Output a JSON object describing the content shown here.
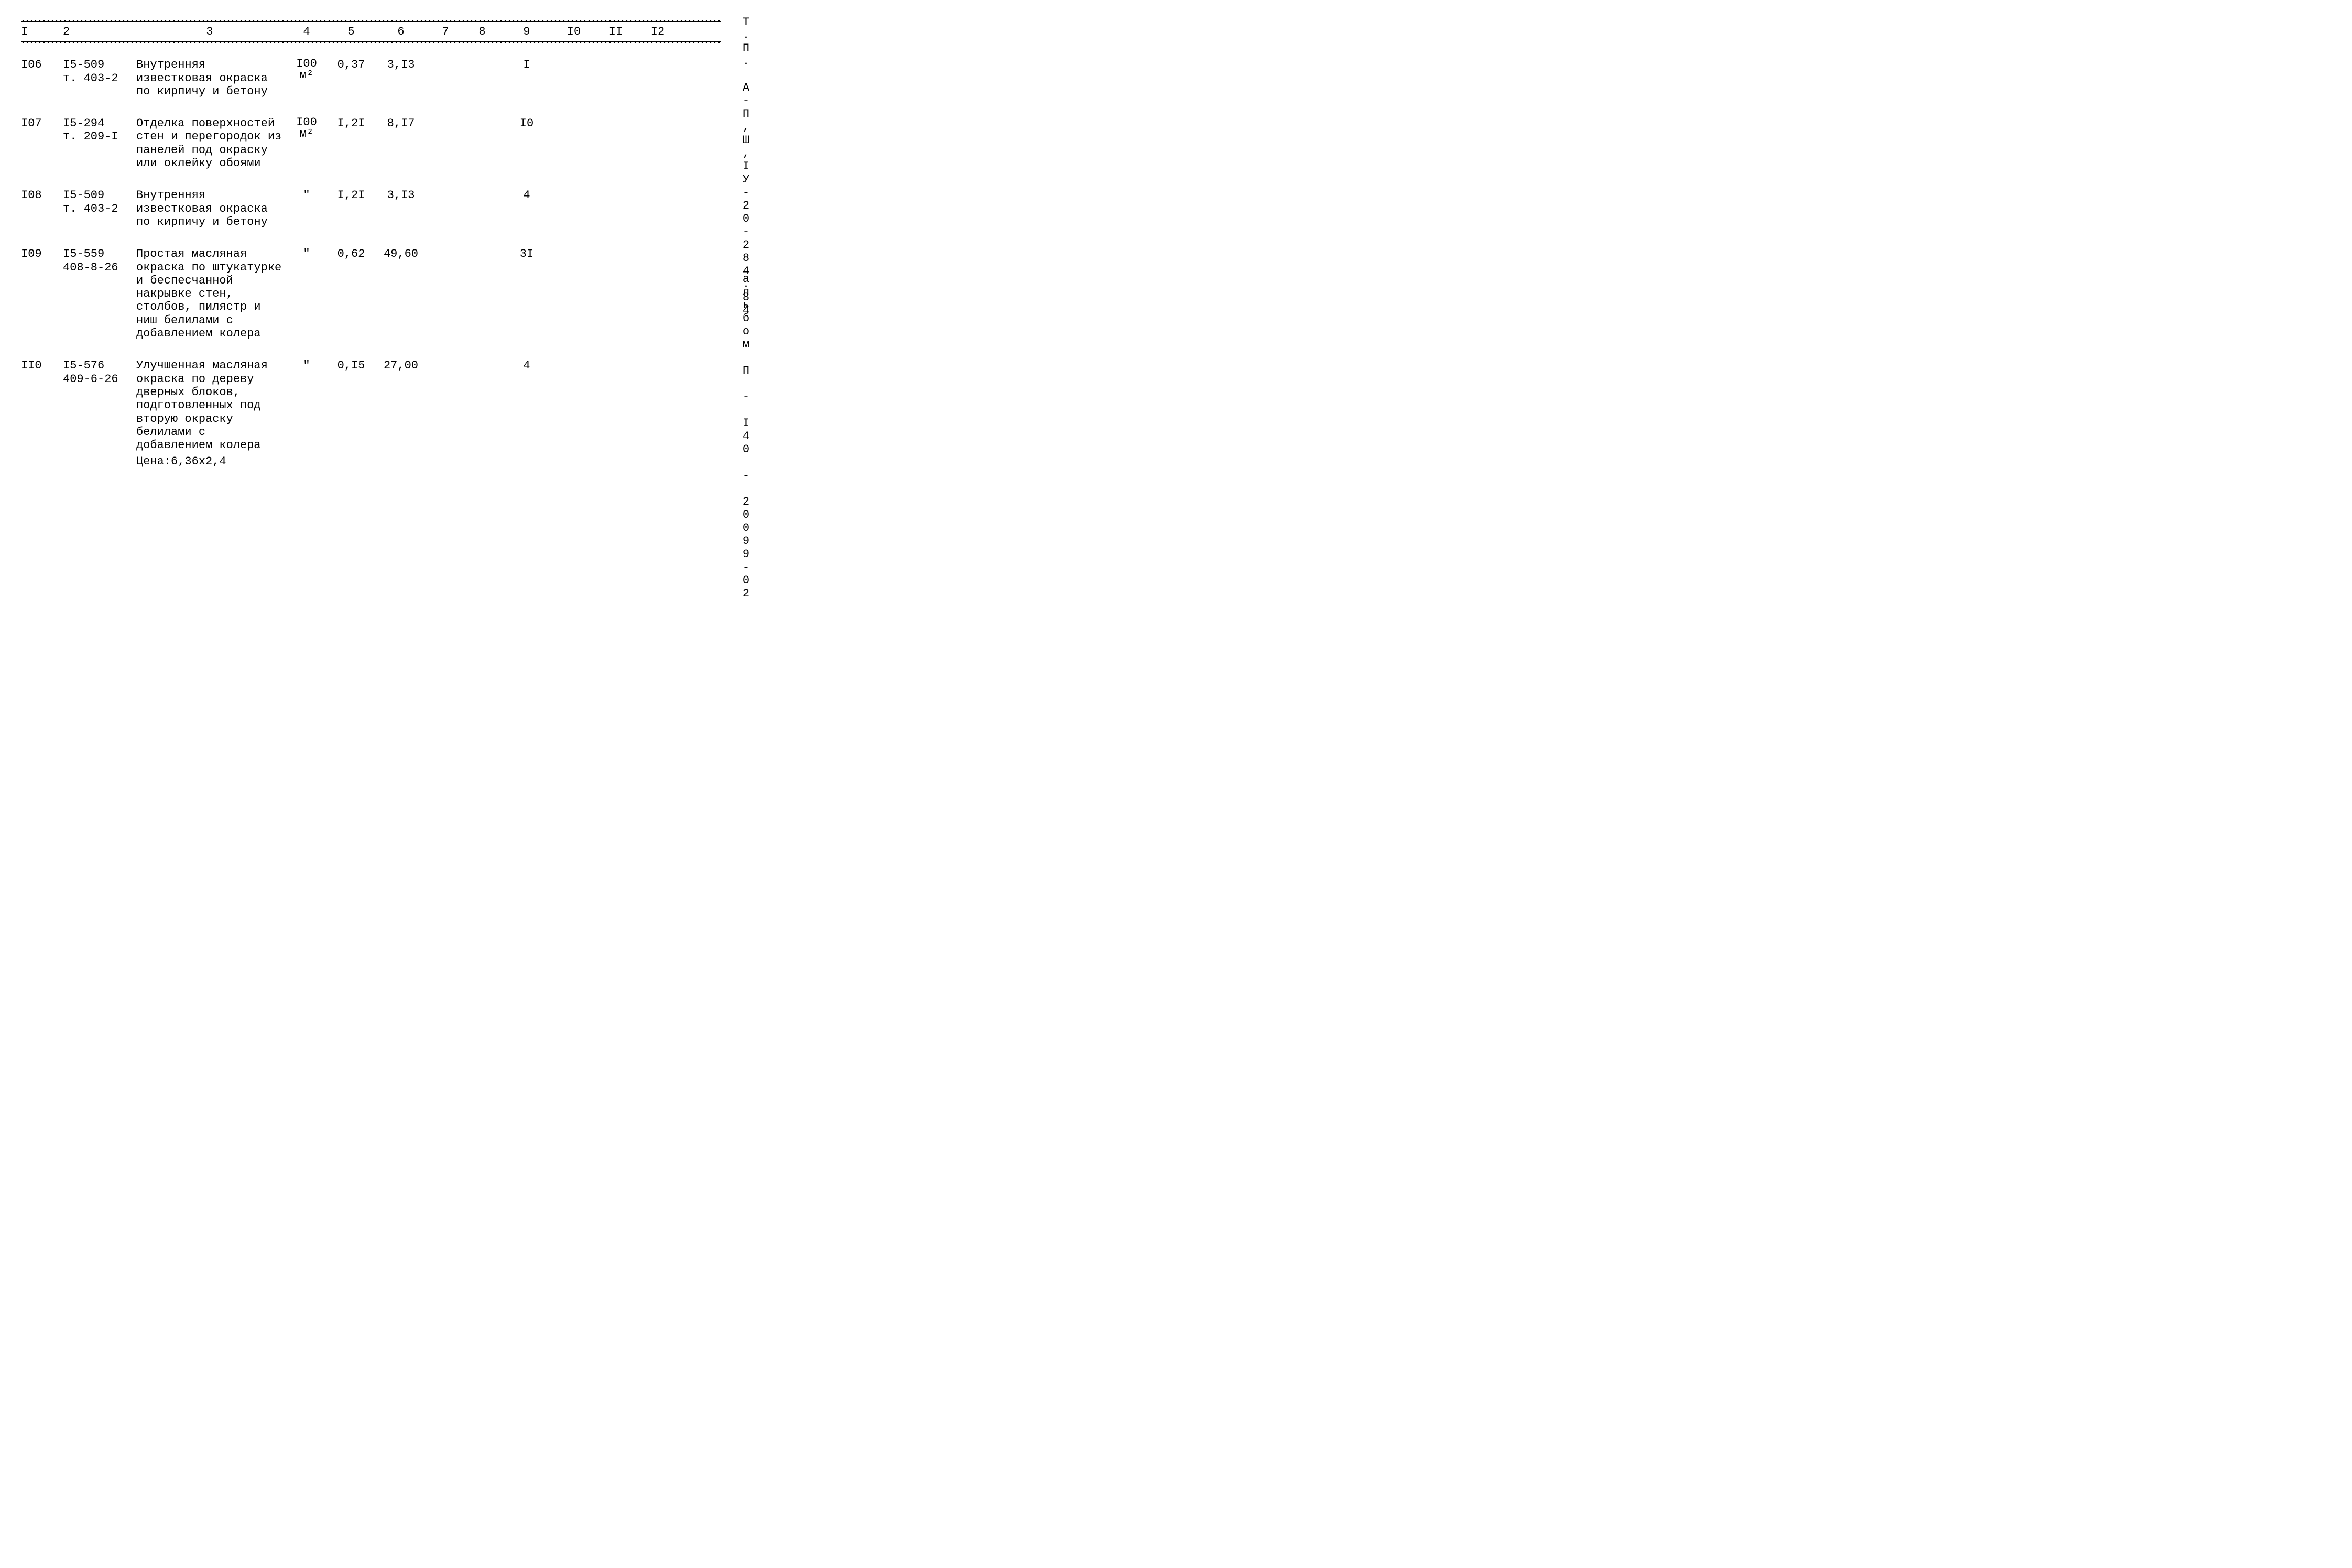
{
  "side": {
    "top": "Т.П. А-П,Ш,IУ-20-284.84",
    "bottom": "альбом П  -  I40  -  20099-02"
  },
  "columns": [
    "I",
    "2",
    "3",
    "4",
    "5",
    "6",
    "7",
    "8",
    "9",
    "I0",
    "II",
    "I2"
  ],
  "unit_100_m2_top": "I00",
  "unit_100_m2_bot": "м²",
  "ditto": "\"",
  "rows": [
    {
      "c1": "I06",
      "c2": "I5-509\nт. 403-2",
      "c3": "Внутренняя известковая окраска по кирпичу и бетону",
      "c4_type": "unit100",
      "c5": "0,37",
      "c6": "3,I3",
      "c7": "",
      "c8": "",
      "c9": "I",
      "c10": "",
      "c11": "",
      "c12": "",
      "price_note": ""
    },
    {
      "c1": "I07",
      "c2": "I5-294\nт. 209-I",
      "c3": "Отделка поверхностей стен и перегородок из панелей под окраску или оклейку обоями",
      "c4_type": "unit100",
      "c5": "I,2I",
      "c6": "8,I7",
      "c7": "",
      "c8": "",
      "c9": "I0",
      "c10": "",
      "c11": "",
      "c12": "",
      "price_note": ""
    },
    {
      "c1": "I08",
      "c2": "I5-509\nт. 403-2",
      "c3": "Внутренняя известковая окраска по кирпичу и бетону",
      "c4_type": "ditto",
      "c5": "I,2I",
      "c6": "3,I3",
      "c7": "",
      "c8": "",
      "c9": "4",
      "c10": "",
      "c11": "",
      "c12": "",
      "price_note": ""
    },
    {
      "c1": "I09",
      "c2": "I5-559\n408-8-26",
      "c3": "Простая масляная окраска по штукатурке и беспесчанной накрывке стен, столбов, пилястр и ниш белилами с добавлением колера",
      "c4_type": "ditto",
      "c5": "0,62",
      "c6": "49,60",
      "c7": "",
      "c8": "",
      "c9": "3I",
      "c10": "",
      "c11": "",
      "c12": "",
      "price_note": ""
    },
    {
      "c1": "II0",
      "c2": "I5-576\n409-6-26",
      "c3": "Улучшенная масляная окраска по дереву дверных блоков, подготовленных под вторую окраску белилами с добавлением колера",
      "c4_type": "ditto",
      "c5": "0,I5",
      "c6": "27,00",
      "c7": "",
      "c8": "",
      "c9": "4",
      "c10": "",
      "c11": "",
      "c12": "",
      "price_note": "Цена:6,36х2,4"
    }
  ]
}
